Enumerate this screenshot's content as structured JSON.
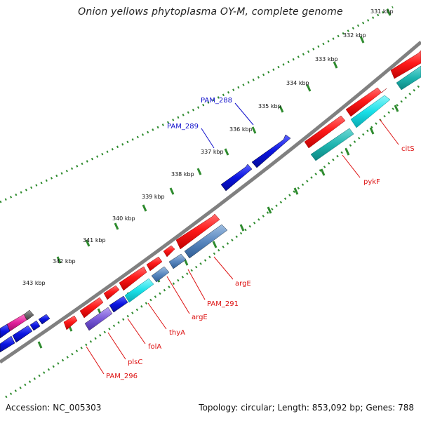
{
  "title": "Onion yellows phytoplasma OY-M, complete genome",
  "footer": {
    "accession": "Accession: NC_005303",
    "topology": "Topology: circular; Length: 853,092 bp; Genes: 788"
  },
  "colors": {
    "backbone": "#808080",
    "ruler_dots": "#2e8b2e",
    "forward_red": "#ff1a1a",
    "reverse_cyan": "#19e0e8",
    "reverse_teal": "#1fb5b0",
    "reverse_blue": "#0a14e0",
    "reverse_steelblue": "#5a88c0",
    "reverse_purple": "#7a5ad8",
    "magenta": "#e0209a",
    "grey_gene": "#6a6a6a",
    "label_red": "#dd1111",
    "label_blue": "#1010cc"
  },
  "ticks": [
    "331 kbp",
    "332 kbp",
    "333 kbp",
    "334 kbp",
    "335 kbp",
    "336 kbp",
    "337 kbp",
    "338 kbp",
    "339 kbp",
    "340 kbp",
    "341 kbp",
    "342 kbp",
    "343 kbp"
  ],
  "labels_red": [
    "citS",
    "pykF",
    "argE",
    "PAM_291",
    "argE",
    "thyA",
    "folA",
    "plsC",
    "PAM_296"
  ],
  "labels_blue": [
    "PAM_288",
    "PAM_289"
  ]
}
